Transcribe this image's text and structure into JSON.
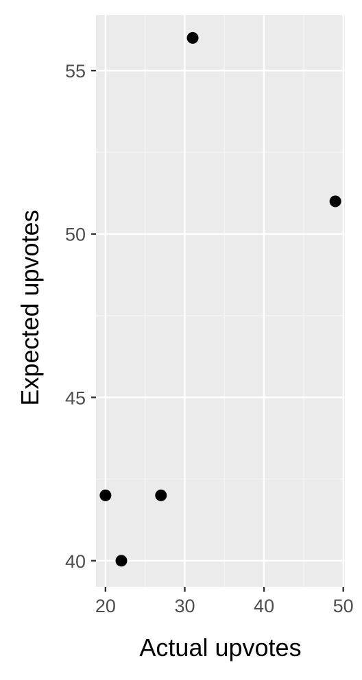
{
  "chart_data": {
    "type": "scatter",
    "title": "",
    "xlabel": "Actual upvotes",
    "ylabel": "Expected upvotes",
    "xlim": [
      18.8,
      50.2
    ],
    "ylim": [
      39.2,
      56.7
    ],
    "x_ticks": [
      20,
      30,
      40,
      50
    ],
    "y_ticks": [
      40,
      45,
      50,
      55
    ],
    "x_tick_labels": [
      "20",
      "30",
      "40",
      "50"
    ],
    "y_tick_labels": [
      "40",
      "45",
      "50",
      "55"
    ],
    "grid": true,
    "legend": "none",
    "colors": {
      "panel_background": "#ebebeb",
      "grid_major": "#ffffff",
      "grid_minor": "#f5f5f5",
      "point": "#000000",
      "tick_text": "#4d4d4d",
      "axis_title": "#000000"
    },
    "points": [
      {
        "x": 20,
        "y": 42
      },
      {
        "x": 22,
        "y": 40
      },
      {
        "x": 27,
        "y": 42
      },
      {
        "x": 31,
        "y": 56
      },
      {
        "x": 49,
        "y": 51
      }
    ]
  }
}
